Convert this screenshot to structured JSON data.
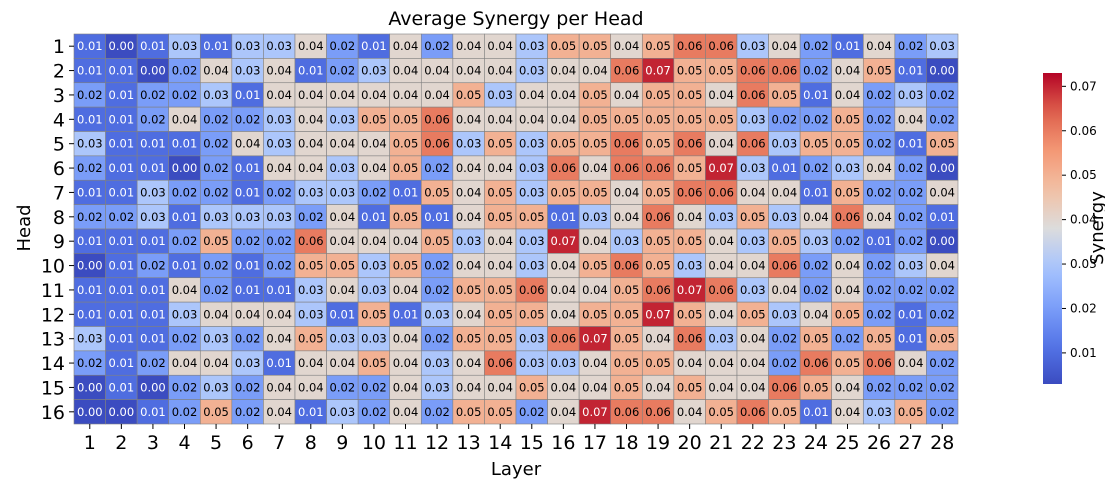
{
  "chart_data": {
    "type": "heatmap",
    "title": "Average Synergy per Head",
    "xlabel": "Layer",
    "ylabel": "Head",
    "colorbar_label": "Synergy",
    "colormap": "coolwarm",
    "vmin": 0.003,
    "vmax": 0.073,
    "colorbar_ticks": [
      0.01,
      0.02,
      0.03,
      0.04,
      0.05,
      0.06,
      0.07
    ],
    "colorbar_tick_labels": [
      "0.01",
      "0.02",
      "0.03",
      "0.04",
      "0.05",
      "0.06",
      "0.07"
    ],
    "x_labels": [
      "1",
      "2",
      "3",
      "4",
      "5",
      "6",
      "7",
      "8",
      "9",
      "10",
      "11",
      "12",
      "13",
      "14",
      "15",
      "16",
      "17",
      "18",
      "19",
      "20",
      "21",
      "22",
      "23",
      "24",
      "25",
      "26",
      "27",
      "28"
    ],
    "y_labels": [
      "1",
      "2",
      "3",
      "4",
      "5",
      "6",
      "7",
      "8",
      "9",
      "10",
      "11",
      "12",
      "13",
      "14",
      "15",
      "16"
    ],
    "values": [
      [
        0.01,
        0.0,
        0.01,
        0.03,
        0.01,
        0.03,
        0.03,
        0.04,
        0.02,
        0.01,
        0.04,
        0.02,
        0.04,
        0.04,
        0.03,
        0.05,
        0.05,
        0.04,
        0.05,
        0.06,
        0.06,
        0.03,
        0.04,
        0.02,
        0.01,
        0.04,
        0.02,
        0.03
      ],
      [
        0.01,
        0.01,
        0.0,
        0.02,
        0.04,
        0.03,
        0.04,
        0.01,
        0.02,
        0.03,
        0.04,
        0.04,
        0.04,
        0.04,
        0.03,
        0.04,
        0.04,
        0.06,
        0.07,
        0.05,
        0.05,
        0.06,
        0.06,
        0.02,
        0.04,
        0.05,
        0.01,
        0.0
      ],
      [
        0.02,
        0.01,
        0.02,
        0.02,
        0.03,
        0.01,
        0.04,
        0.04,
        0.04,
        0.04,
        0.04,
        0.04,
        0.05,
        0.03,
        0.04,
        0.04,
        0.05,
        0.04,
        0.05,
        0.05,
        0.04,
        0.06,
        0.05,
        0.01,
        0.04,
        0.02,
        0.03,
        0.02
      ],
      [
        0.01,
        0.01,
        0.02,
        0.04,
        0.02,
        0.02,
        0.03,
        0.04,
        0.03,
        0.05,
        0.05,
        0.06,
        0.04,
        0.04,
        0.04,
        0.04,
        0.05,
        0.05,
        0.05,
        0.05,
        0.05,
        0.03,
        0.02,
        0.02,
        0.05,
        0.02,
        0.04,
        0.02
      ],
      [
        0.03,
        0.01,
        0.01,
        0.01,
        0.02,
        0.04,
        0.03,
        0.04,
        0.04,
        0.04,
        0.05,
        0.06,
        0.03,
        0.05,
        0.03,
        0.05,
        0.05,
        0.06,
        0.05,
        0.06,
        0.04,
        0.06,
        0.03,
        0.05,
        0.05,
        0.02,
        0.01,
        0.05
      ],
      [
        0.02,
        0.01,
        0.01,
        0.0,
        0.02,
        0.01,
        0.04,
        0.04,
        0.03,
        0.04,
        0.05,
        0.02,
        0.04,
        0.04,
        0.03,
        0.06,
        0.04,
        0.06,
        0.06,
        0.05,
        0.07,
        0.03,
        0.01,
        0.02,
        0.03,
        0.04,
        0.02,
        0.0
      ],
      [
        0.01,
        0.01,
        0.03,
        0.02,
        0.02,
        0.01,
        0.02,
        0.03,
        0.03,
        0.02,
        0.01,
        0.05,
        0.04,
        0.05,
        0.03,
        0.05,
        0.05,
        0.04,
        0.05,
        0.06,
        0.06,
        0.04,
        0.04,
        0.01,
        0.05,
        0.02,
        0.02,
        0.04
      ],
      [
        0.02,
        0.02,
        0.03,
        0.01,
        0.03,
        0.03,
        0.03,
        0.02,
        0.04,
        0.01,
        0.05,
        0.01,
        0.04,
        0.05,
        0.05,
        0.01,
        0.03,
        0.04,
        0.06,
        0.04,
        0.03,
        0.05,
        0.03,
        0.04,
        0.06,
        0.04,
        0.02,
        0.01
      ],
      [
        0.01,
        0.01,
        0.01,
        0.02,
        0.05,
        0.02,
        0.02,
        0.06,
        0.04,
        0.04,
        0.04,
        0.05,
        0.03,
        0.04,
        0.03,
        0.07,
        0.04,
        0.03,
        0.05,
        0.05,
        0.04,
        0.03,
        0.05,
        0.03,
        0.02,
        0.01,
        0.02,
        0.0
      ],
      [
        0.0,
        0.01,
        0.02,
        0.01,
        0.02,
        0.01,
        0.02,
        0.05,
        0.05,
        0.03,
        0.05,
        0.02,
        0.04,
        0.04,
        0.03,
        0.04,
        0.05,
        0.06,
        0.05,
        0.03,
        0.04,
        0.04,
        0.06,
        0.02,
        0.04,
        0.02,
        0.03,
        0.04
      ],
      [
        0.01,
        0.01,
        0.01,
        0.04,
        0.02,
        0.01,
        0.01,
        0.03,
        0.04,
        0.03,
        0.04,
        0.02,
        0.05,
        0.05,
        0.06,
        0.04,
        0.04,
        0.05,
        0.06,
        0.07,
        0.06,
        0.03,
        0.04,
        0.02,
        0.04,
        0.02,
        0.02,
        0.02
      ],
      [
        0.01,
        0.01,
        0.01,
        0.03,
        0.04,
        0.04,
        0.04,
        0.03,
        0.01,
        0.05,
        0.01,
        0.03,
        0.04,
        0.05,
        0.05,
        0.04,
        0.05,
        0.05,
        0.07,
        0.05,
        0.04,
        0.05,
        0.03,
        0.04,
        0.05,
        0.02,
        0.01,
        0.02
      ],
      [
        0.03,
        0.01,
        0.01,
        0.02,
        0.03,
        0.02,
        0.04,
        0.05,
        0.03,
        0.03,
        0.04,
        0.02,
        0.05,
        0.05,
        0.03,
        0.06,
        0.07,
        0.05,
        0.04,
        0.06,
        0.03,
        0.04,
        0.02,
        0.05,
        0.02,
        0.05,
        0.01,
        0.05
      ],
      [
        0.02,
        0.01,
        0.02,
        0.04,
        0.04,
        0.03,
        0.01,
        0.04,
        0.04,
        0.05,
        0.04,
        0.03,
        0.04,
        0.06,
        0.03,
        0.03,
        0.04,
        0.05,
        0.05,
        0.04,
        0.04,
        0.04,
        0.02,
        0.06,
        0.05,
        0.06,
        0.04,
        0.02
      ],
      [
        0.0,
        0.01,
        0.0,
        0.02,
        0.03,
        0.02,
        0.04,
        0.04,
        0.02,
        0.02,
        0.04,
        0.03,
        0.04,
        0.04,
        0.05,
        0.04,
        0.04,
        0.05,
        0.04,
        0.05,
        0.04,
        0.04,
        0.06,
        0.05,
        0.04,
        0.02,
        0.02,
        0.02
      ],
      [
        0.0,
        0.0,
        0.01,
        0.02,
        0.05,
        0.02,
        0.04,
        0.01,
        0.03,
        0.02,
        0.04,
        0.02,
        0.05,
        0.05,
        0.02,
        0.04,
        0.07,
        0.06,
        0.06,
        0.04,
        0.05,
        0.06,
        0.05,
        0.01,
        0.04,
        0.03,
        0.05,
        0.02
      ]
    ]
  }
}
